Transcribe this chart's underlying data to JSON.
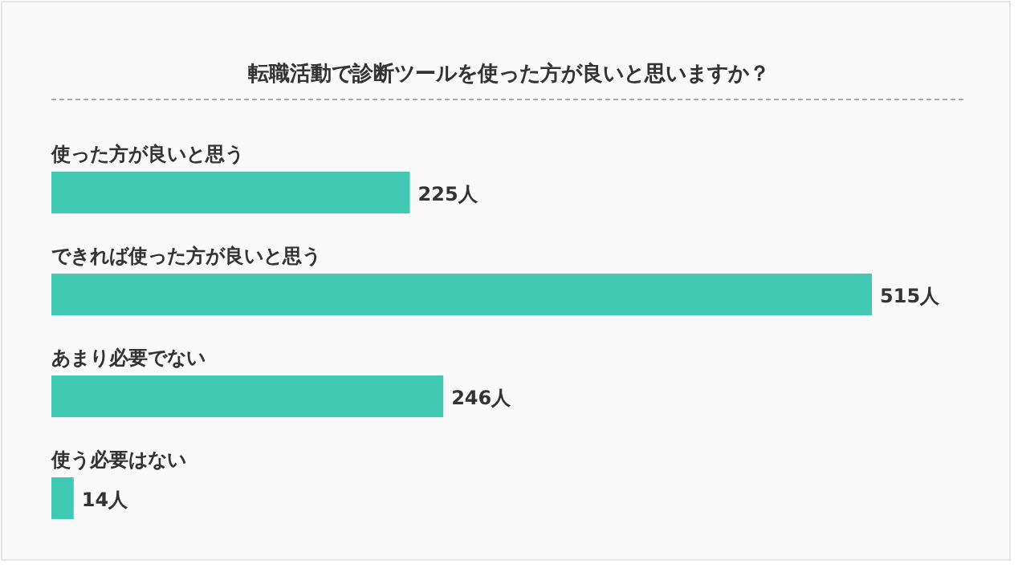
{
  "chart_data": {
    "type": "bar",
    "orientation": "horizontal",
    "title": "転職活動で診断ツールを使った方が良いと思いますか？",
    "categories": [
      "使った方が良いと思う",
      "できれば使った方が良いと思う",
      "あまり必要でない",
      "使う必要はない"
    ],
    "values": [
      225,
      515,
      246,
      14
    ],
    "value_labels": [
      "225人",
      "515人",
      "246人",
      "14人"
    ],
    "color": "#41c9b4",
    "xlim": [
      0,
      515
    ]
  }
}
